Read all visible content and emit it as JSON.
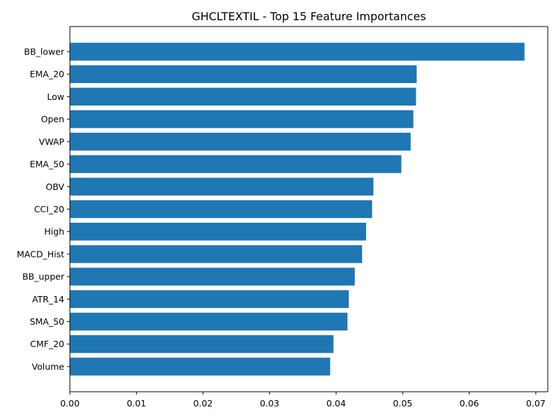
{
  "chart_data": {
    "type": "bar",
    "orientation": "horizontal",
    "title": "GHCLTEXTIL - Top 15 Feature Importances",
    "xlabel": "",
    "ylabel": "",
    "categories": [
      "BB_lower",
      "EMA_20",
      "Low",
      "Open",
      "VWAP",
      "EMA_50",
      "OBV",
      "CCI_20",
      "High",
      "MACD_Hist",
      "BB_upper",
      "ATR_14",
      "SMA_50",
      "CMF_20",
      "Volume"
    ],
    "values": [
      0.0683,
      0.0521,
      0.052,
      0.0516,
      0.0512,
      0.0498,
      0.0456,
      0.0454,
      0.0445,
      0.0439,
      0.0428,
      0.0419,
      0.0417,
      0.0396,
      0.0391
    ],
    "xlim": [
      0,
      0.0718
    ],
    "xticks": [
      "0.00",
      "0.01",
      "0.02",
      "0.03",
      "0.04",
      "0.05",
      "0.06",
      "0.07"
    ],
    "bar_color": "#1f77b4",
    "grid": false,
    "legend": "none"
  }
}
